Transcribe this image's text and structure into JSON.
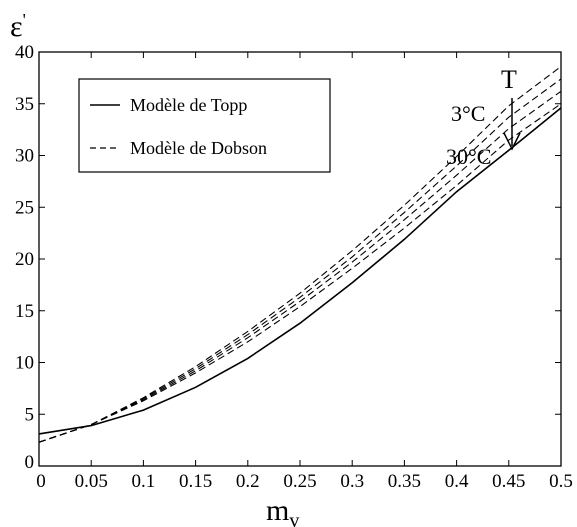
{
  "chart_data": {
    "type": "line",
    "xlabel": "m",
    "xlabel_sub": "v",
    "ylabel": "ε",
    "ylabel_sup": "'",
    "xlim": [
      0,
      0.5
    ],
    "ylim": [
      0,
      40
    ],
    "xticks": [
      0,
      0.05,
      0.1,
      0.15,
      0.2,
      0.25,
      0.3,
      0.35,
      0.4,
      0.45,
      0.5
    ],
    "xtick_labels": [
      "0",
      "0.05",
      "0.1",
      "0.15",
      "0.2",
      "0.25",
      "0.3",
      "0.35",
      "0.4",
      "0.45",
      "0.5"
    ],
    "yticks": [
      0,
      5,
      10,
      15,
      20,
      25,
      30,
      35,
      40
    ],
    "ytick_labels": [
      "0",
      "5",
      "10",
      "15",
      "20",
      "25",
      "30",
      "35",
      "40"
    ],
    "grid": false,
    "legend_position": "top-left",
    "x": [
      0,
      0.05,
      0.1,
      0.15,
      0.2,
      0.25,
      0.3,
      0.35,
      0.4,
      0.45,
      0.5
    ],
    "series": [
      {
        "name": "Modèle de Topp",
        "style": "solid",
        "values": [
          3.1,
          3.9,
          5.4,
          7.6,
          10.4,
          13.8,
          17.7,
          21.9,
          26.5,
          30.5,
          34.6
        ]
      },
      {
        "name": "Modèle de Dobson",
        "style": "dashed",
        "values": [
          2.3,
          4.0,
          6.3,
          9.0,
          12.0,
          15.4,
          19.1,
          23.0,
          27.1,
          31.5,
          35.0
        ]
      },
      {
        "name": "",
        "style": "dashed",
        "values": [
          2.3,
          4.0,
          6.4,
          9.2,
          12.4,
          15.9,
          19.7,
          23.8,
          28.1,
          32.6,
          36.2
        ]
      },
      {
        "name": "",
        "style": "dashed",
        "values": [
          2.3,
          4.0,
          6.5,
          9.4,
          12.7,
          16.3,
          20.2,
          24.5,
          29.0,
          33.7,
          37.4
        ]
      },
      {
        "name": "",
        "style": "dashed",
        "values": [
          2.3,
          4.0,
          6.6,
          9.6,
          13.0,
          16.7,
          20.8,
          25.2,
          29.9,
          34.8,
          38.6
        ]
      }
    ],
    "annotations": {
      "arrow_label": "T",
      "top_temp": "3°C",
      "bottom_temp": "30°C"
    }
  }
}
